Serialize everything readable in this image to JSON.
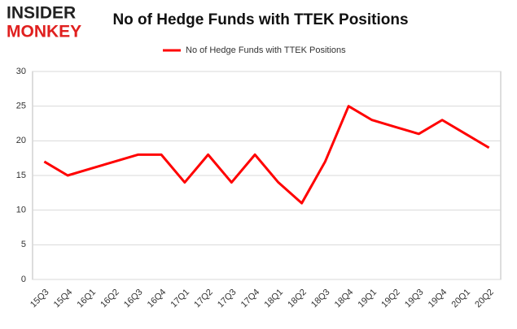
{
  "chart_data": {
    "type": "line",
    "title": "No of Hedge Funds with TTEK Positions",
    "logo": [
      "INSIDER",
      "MONKEY"
    ],
    "categories": [
      "15Q3",
      "15Q4",
      "16Q1",
      "16Q2",
      "16Q3",
      "16Q4",
      "17Q1",
      "17Q2",
      "17Q3",
      "17Q4",
      "18Q1",
      "18Q2",
      "18Q3",
      "18Q4",
      "19Q1",
      "19Q2",
      "19Q3",
      "19Q4",
      "20Q1",
      "20Q2"
    ],
    "series": [
      {
        "name": "No of Hedge Funds with TTEK Positions",
        "color": "#ff0000",
        "values": [
          17,
          15,
          16,
          17,
          18,
          18,
          14,
          18,
          14,
          18,
          14,
          11,
          17,
          25,
          23,
          22,
          21,
          23,
          21,
          19
        ]
      }
    ],
    "ylim": [
      0,
      30
    ],
    "yticks": [
      0,
      5,
      10,
      15,
      20,
      25,
      30
    ],
    "grid": true,
    "legend": "top"
  }
}
